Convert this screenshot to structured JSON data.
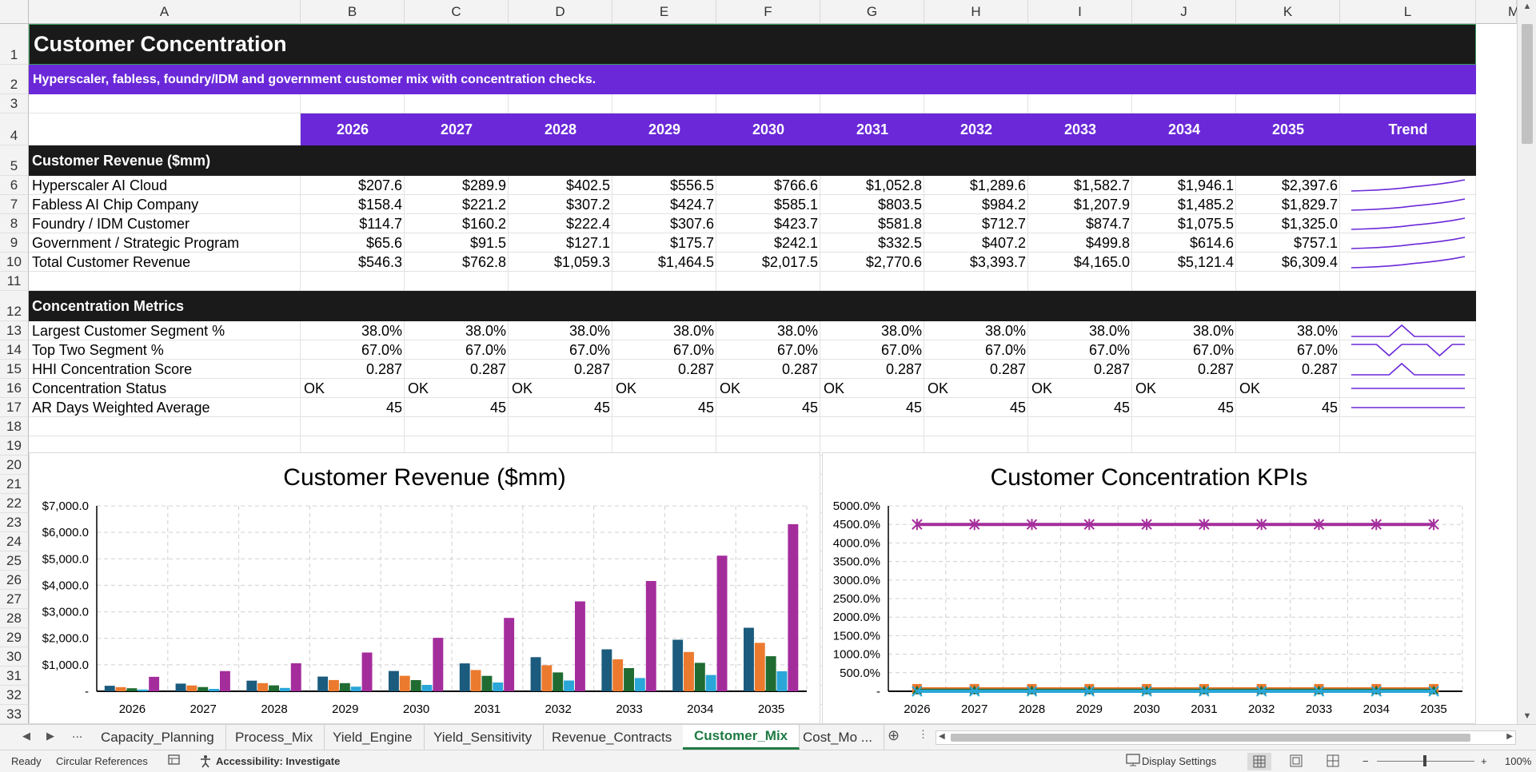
{
  "columns": [
    "A",
    "B",
    "C",
    "D",
    "E",
    "F",
    "G",
    "H",
    "I",
    "J",
    "K",
    "L",
    "M"
  ],
  "rows": [
    "1",
    "2",
    "3",
    "4",
    "5",
    "6",
    "7",
    "8",
    "9",
    "10",
    "11",
    "12",
    "13",
    "14",
    "15",
    "16",
    "17",
    "18",
    "19",
    "20",
    "21",
    "22",
    "23",
    "24",
    "25",
    "26",
    "27",
    "28",
    "29",
    "30",
    "31",
    "32",
    "33"
  ],
  "title": "Customer Concentration",
  "subtitle": "Hyperscaler, fabless, foundry/IDM and government customer mix with concentration checks.",
  "years": [
    "2026",
    "2027",
    "2028",
    "2029",
    "2030",
    "2031",
    "2032",
    "2033",
    "2034",
    "2035"
  ],
  "trend_label": "Trend",
  "accent_color": "#6a28d8",
  "header_dark": "#1a1a1a",
  "revenue_section": {
    "title": "Customer Revenue ($mm)",
    "rows": [
      {
        "label": "Hyperscaler AI Cloud",
        "values": [
          "$207.6",
          "$289.9",
          "$402.5",
          "$556.5",
          "$766.6",
          "$1,052.8",
          "$1,289.6",
          "$1,582.7",
          "$1,946.1",
          "$2,397.6"
        ]
      },
      {
        "label": "Fabless AI Chip Company",
        "values": [
          "$158.4",
          "$221.2",
          "$307.2",
          "$424.7",
          "$585.1",
          "$803.5",
          "$984.2",
          "$1,207.9",
          "$1,485.2",
          "$1,829.7"
        ]
      },
      {
        "label": "Foundry / IDM Customer",
        "values": [
          "$114.7",
          "$160.2",
          "$222.4",
          "$307.6",
          "$423.7",
          "$581.8",
          "$712.7",
          "$874.7",
          "$1,075.5",
          "$1,325.0"
        ]
      },
      {
        "label": "Government / Strategic Program",
        "values": [
          "$65.6",
          "$91.5",
          "$127.1",
          "$175.7",
          "$242.1",
          "$332.5",
          "$407.2",
          "$499.8",
          "$614.6",
          "$757.1"
        ]
      },
      {
        "label": "Total Customer Revenue",
        "values": [
          "$546.3",
          "$762.8",
          "$1,059.3",
          "$1,464.5",
          "$2,017.5",
          "$2,770.6",
          "$3,393.7",
          "$4,165.0",
          "$5,121.4",
          "$6,309.4"
        ]
      }
    ]
  },
  "metrics_section": {
    "title": "Concentration Metrics",
    "rows": [
      {
        "label": "Largest Customer Segment %",
        "align": "right",
        "values": [
          "38.0%",
          "38.0%",
          "38.0%",
          "38.0%",
          "38.0%",
          "38.0%",
          "38.0%",
          "38.0%",
          "38.0%",
          "38.0%"
        ]
      },
      {
        "label": "Top Two Segment %",
        "align": "right",
        "values": [
          "67.0%",
          "67.0%",
          "67.0%",
          "67.0%",
          "67.0%",
          "67.0%",
          "67.0%",
          "67.0%",
          "67.0%",
          "67.0%"
        ]
      },
      {
        "label": "HHI Concentration Score",
        "align": "right",
        "values": [
          "0.287",
          "0.287",
          "0.287",
          "0.287",
          "0.287",
          "0.287",
          "0.287",
          "0.287",
          "0.287",
          "0.287"
        ]
      },
      {
        "label": "Concentration Status",
        "align": "left",
        "values": [
          "OK",
          "OK",
          "OK",
          "OK",
          "OK",
          "OK",
          "OK",
          "OK",
          "OK",
          "OK"
        ]
      },
      {
        "label": "AR Days Weighted Average",
        "align": "right",
        "values": [
          "45",
          "45",
          "45",
          "45",
          "45",
          "45",
          "45",
          "45",
          "45",
          "45"
        ]
      }
    ]
  },
  "chart_data": [
    {
      "type": "bar",
      "title": "Customer Revenue ($mm)",
      "categories": [
        "2026",
        "2027",
        "2028",
        "2029",
        "2030",
        "2031",
        "2032",
        "2033",
        "2034",
        "2035"
      ],
      "yticks": [
        "-",
        "$1,000.0",
        "$2,000.0",
        "$3,000.0",
        "$4,000.0",
        "$5,000.0",
        "$6,000.0",
        "$7,000.0"
      ],
      "ylim": [
        0,
        7000
      ],
      "grid": true,
      "series": [
        {
          "color": "#1b5b7d",
          "values": [
            207.6,
            289.9,
            402.5,
            556.5,
            766.6,
            1052.8,
            1289.6,
            1582.7,
            1946.1,
            2397.6
          ]
        },
        {
          "color": "#ec7a2e",
          "values": [
            158.4,
            221.2,
            307.2,
            424.7,
            585.1,
            803.5,
            984.2,
            1207.9,
            1485.2,
            1829.7
          ]
        },
        {
          "color": "#1f6b32",
          "values": [
            114.7,
            160.2,
            222.4,
            307.6,
            423.7,
            581.8,
            712.7,
            874.7,
            1075.5,
            1325.0
          ]
        },
        {
          "color": "#2aa6d8",
          "values": [
            65.6,
            91.5,
            127.1,
            175.7,
            242.1,
            332.5,
            407.2,
            499.8,
            614.6,
            757.1
          ]
        },
        {
          "color": "#a42d9c",
          "values": [
            546.3,
            762.8,
            1059.3,
            1464.5,
            2017.5,
            2770.6,
            3393.7,
            4165.0,
            5121.4,
            6309.4
          ]
        }
      ]
    },
    {
      "type": "line",
      "title": "Customer Concentration KPIs",
      "categories": [
        "2026",
        "2027",
        "2028",
        "2029",
        "2030",
        "2031",
        "2032",
        "2033",
        "2034",
        "2035"
      ],
      "yticks": [
        "-",
        "500.0%",
        "1000.0%",
        "1500.0%",
        "2000.0%",
        "2500.0%",
        "3000.0%",
        "3500.0%",
        "4000.0%",
        "4500.0%",
        "5000.0%"
      ],
      "ylim": [
        0,
        5000
      ],
      "grid": true,
      "series": [
        {
          "color": "#1b5b7d",
          "marker": "diamond",
          "values": [
            38,
            38,
            38,
            38,
            38,
            38,
            38,
            38,
            38,
            38
          ]
        },
        {
          "color": "#ec7a2e",
          "marker": "square",
          "values": [
            67,
            67,
            67,
            67,
            67,
            67,
            67,
            67,
            67,
            67
          ]
        },
        {
          "color": "#1f6b32",
          "marker": "triangle",
          "values": [
            28.7,
            28.7,
            28.7,
            28.7,
            28.7,
            28.7,
            28.7,
            28.7,
            28.7,
            28.7
          ]
        },
        {
          "color": "#2aa6d8",
          "marker": "x",
          "values": [
            0,
            0,
            0,
            0,
            0,
            0,
            0,
            0,
            0,
            0
          ]
        },
        {
          "color": "#a42d9c",
          "marker": "star",
          "values": [
            4500,
            4500,
            4500,
            4500,
            4500,
            4500,
            4500,
            4500,
            4500,
            4500
          ]
        }
      ]
    }
  ],
  "sheet_tabs": {
    "ellipsis": "...",
    "tabs": [
      "Capacity_Planning",
      "Process_Mix",
      "Yield_Engine",
      "Yield_Sensitivity",
      "Revenue_Contracts",
      "Customer_Mix",
      "Cost_Mo ..."
    ],
    "active": "Customer_Mix"
  },
  "status": {
    "ready": "Ready",
    "circular": "Circular References",
    "accessibility": "Accessibility: Investigate",
    "display_settings": "Display Settings",
    "zoom": "100%"
  },
  "icons": {
    "prev_sheet": "triangle-left",
    "next_sheet": "triangle-right",
    "add_sheet": "plus-circle",
    "accessibility": "accessibility-icon",
    "display": "monitor-icon",
    "macro": "record-macro-icon"
  }
}
